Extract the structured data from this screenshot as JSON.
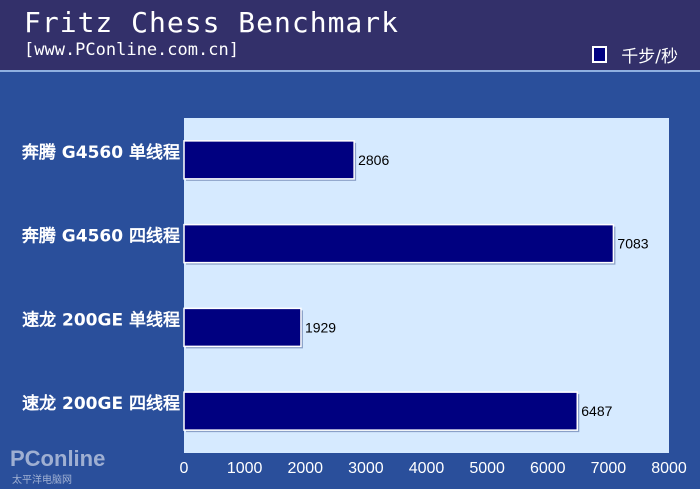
{
  "header": {
    "title": "Fritz Chess Benchmark",
    "subtitle": "[www.PConline.com.cn]",
    "legend": "千步/秒"
  },
  "colors": {
    "header": "#33306a",
    "background": "#2a4f9b",
    "plot": "#d6eaff",
    "bar": "#000080"
  },
  "watermark": "PConline 太平洋电脑网",
  "chart_data": {
    "type": "bar",
    "orientation": "horizontal",
    "title": "Fritz Chess Benchmark",
    "categories": [
      "奔腾 G4560 单线程",
      "奔腾 G4560 四线程",
      "速龙 200GE 单线程",
      "速龙 200GE 四线程"
    ],
    "series": [
      {
        "name": "千步/秒",
        "values": [
          2806,
          7083,
          1929,
          6487
        ]
      }
    ],
    "xlim": [
      0,
      8000
    ],
    "xticks": [
      "0",
      "1000",
      "2000",
      "3000",
      "4000",
      "5000",
      "6000",
      "7000",
      "8000"
    ],
    "legend_position": "top-right",
    "grid": false
  }
}
